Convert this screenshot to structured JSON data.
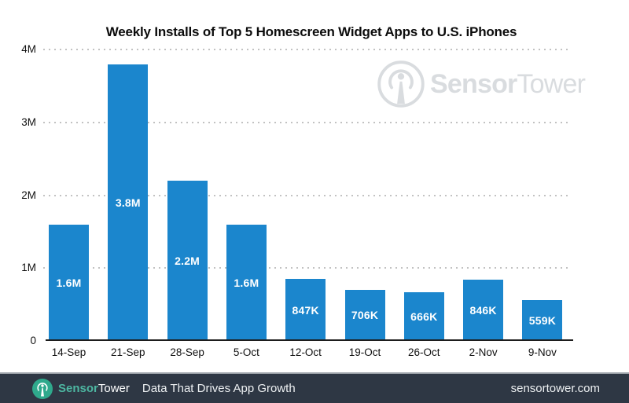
{
  "title": "Weekly Installs of Top 5 Homescreen Widget Apps to U.S. iPhones",
  "watermark": {
    "brand_bold": "Sensor",
    "brand_light": "Tower",
    "color": "#d9dcdf"
  },
  "chart_data": {
    "type": "bar",
    "title": "Weekly Installs of Top 5 Homescreen Widget Apps to U.S. iPhones",
    "categories": [
      "14-Sep",
      "21-Sep",
      "28-Sep",
      "5-Oct",
      "12-Oct",
      "19-Oct",
      "26-Oct",
      "2-Nov",
      "9-Nov"
    ],
    "values": [
      1600000,
      3800000,
      2200000,
      1600000,
      847000,
      706000,
      666000,
      846000,
      559000
    ],
    "value_labels": [
      "1.6M",
      "3.8M",
      "2.2M",
      "1.6M",
      "847K",
      "706K",
      "666K",
      "846K",
      "559K"
    ],
    "xlabel": "",
    "ylabel": "",
    "ylim": [
      0,
      4000000
    ],
    "yticks": [
      {
        "label": "0",
        "value": 0
      },
      {
        "label": "1M",
        "value": 1000000
      },
      {
        "label": "2M",
        "value": 2000000
      },
      {
        "label": "3M",
        "value": 3000000
      },
      {
        "label": "4M",
        "value": 4000000
      }
    ],
    "grid": "horizontal-dotted",
    "legend": "none",
    "bar_color": "#1b86cd",
    "grid_color": "#c2c2c2",
    "axis_color": "#1d1d1d",
    "bar_value_label_color": "#ffffff"
  },
  "footer": {
    "background": "#2e3744",
    "brand_bold": "Sensor",
    "brand_light": "Tower",
    "brand_accent_color": "#4db6a1",
    "tagline": "Data That Drives App Growth",
    "website": "sensortower.com"
  }
}
